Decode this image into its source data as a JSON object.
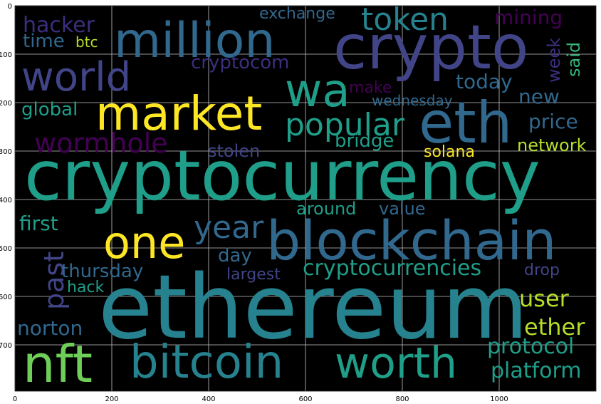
{
  "x_ticks": [
    "0",
    "200",
    "400",
    "600",
    "800",
    "1000"
  ],
  "y_ticks": [
    "0",
    "100",
    "200",
    "300",
    "400",
    "500",
    "600",
    "700"
  ],
  "palette": {
    "bg": "#000000",
    "grid": "#d9d9d9",
    "purple_dark": "#440154",
    "purple": "#3b2f7d",
    "indigo": "#414487",
    "blue": "#31688e",
    "teal": "#26828e",
    "teal_green": "#1f9e89",
    "green": "#35b779",
    "lime": "#6ece58",
    "yellow_green": "#b5de2b",
    "yellow": "#fde725"
  },
  "words": [
    {
      "id": "w-cryptocurrency",
      "text": "cryptocurrency",
      "color": "teal_green"
    },
    {
      "id": "w-ethereum",
      "text": "ethereum",
      "color": "teal"
    },
    {
      "id": "w-crypto",
      "text": "crypto",
      "color": "indigo"
    },
    {
      "id": "w-million",
      "text": "million",
      "color": "blue"
    },
    {
      "id": "w-market",
      "text": "market",
      "color": "yellow"
    },
    {
      "id": "w-eth",
      "text": "eth",
      "color": "blue"
    },
    {
      "id": "w-blockchain",
      "text": "blockchain",
      "color": "blue"
    },
    {
      "id": "w-world",
      "text": "world",
      "color": "indigo"
    },
    {
      "id": "w-wa",
      "text": "wa",
      "color": "teal_green"
    },
    {
      "id": "w-token",
      "text": "token",
      "color": "teal"
    },
    {
      "id": "w-nft",
      "text": "nft",
      "color": "lime"
    },
    {
      "id": "w-bitcoin",
      "text": "bitcoin",
      "color": "teal"
    },
    {
      "id": "w-worth",
      "text": "worth",
      "color": "teal_green"
    },
    {
      "id": "w-one",
      "text": "one",
      "color": "yellow"
    },
    {
      "id": "w-year",
      "text": "year",
      "color": "blue"
    },
    {
      "id": "w-popular",
      "text": "popular",
      "color": "teal_green"
    },
    {
      "id": "w-wormhole",
      "text": "wormhole",
      "color": "purple_dark"
    },
    {
      "id": "w-past",
      "text": "past",
      "color": "indigo"
    },
    {
      "id": "w-hacker",
      "text": "hacker",
      "color": "purple"
    },
    {
      "id": "w-time",
      "text": "time",
      "color": "blue"
    },
    {
      "id": "w-btc",
      "text": "btc",
      "color": "yellow_green"
    },
    {
      "id": "w-exchange",
      "text": "exchange",
      "color": "blue"
    },
    {
      "id": "w-cryptocom",
      "text": "cryptocom",
      "color": "purple"
    },
    {
      "id": "w-mining",
      "text": "mining",
      "color": "purple_dark"
    },
    {
      "id": "w-week",
      "text": "week",
      "color": "purple"
    },
    {
      "id": "w-said",
      "text": "said",
      "color": "green"
    },
    {
      "id": "w-today",
      "text": "today",
      "color": "blue"
    },
    {
      "id": "w-make",
      "text": "make",
      "color": "purple_dark"
    },
    {
      "id": "w-wednesday",
      "text": "wednesday",
      "color": "blue"
    },
    {
      "id": "w-new",
      "text": "new",
      "color": "blue"
    },
    {
      "id": "w-global",
      "text": "global",
      "color": "teal_green"
    },
    {
      "id": "w-price",
      "text": "price",
      "color": "blue"
    },
    {
      "id": "w-bridge",
      "text": "bridge",
      "color": "teal_green"
    },
    {
      "id": "w-solana",
      "text": "solana",
      "color": "yellow"
    },
    {
      "id": "w-network",
      "text": "network",
      "color": "yellow_green"
    },
    {
      "id": "w-stolen",
      "text": "stolen",
      "color": "indigo"
    },
    {
      "id": "w-around",
      "text": "around",
      "color": "teal_green"
    },
    {
      "id": "w-value",
      "text": "value",
      "color": "blue"
    },
    {
      "id": "w-first",
      "text": "first",
      "color": "teal_green"
    },
    {
      "id": "w-day",
      "text": "day",
      "color": "blue"
    },
    {
      "id": "w-thursday",
      "text": "thursday",
      "color": "blue"
    },
    {
      "id": "w-cryptocurrencies",
      "text": "cryptocurrencies",
      "color": "teal_green"
    },
    {
      "id": "w-drop",
      "text": "drop",
      "color": "indigo"
    },
    {
      "id": "w-largest",
      "text": "largest",
      "color": "indigo"
    },
    {
      "id": "w-hack",
      "text": "hack",
      "color": "teal_green"
    },
    {
      "id": "w-user",
      "text": "user",
      "color": "yellow_green"
    },
    {
      "id": "w-norton",
      "text": "norton",
      "color": "blue"
    },
    {
      "id": "w-ether",
      "text": "ether",
      "color": "yellow_green"
    },
    {
      "id": "w-protocol",
      "text": "protocol",
      "color": "teal_green"
    },
    {
      "id": "w-platform",
      "text": "platform",
      "color": "teal_green"
    }
  ]
}
